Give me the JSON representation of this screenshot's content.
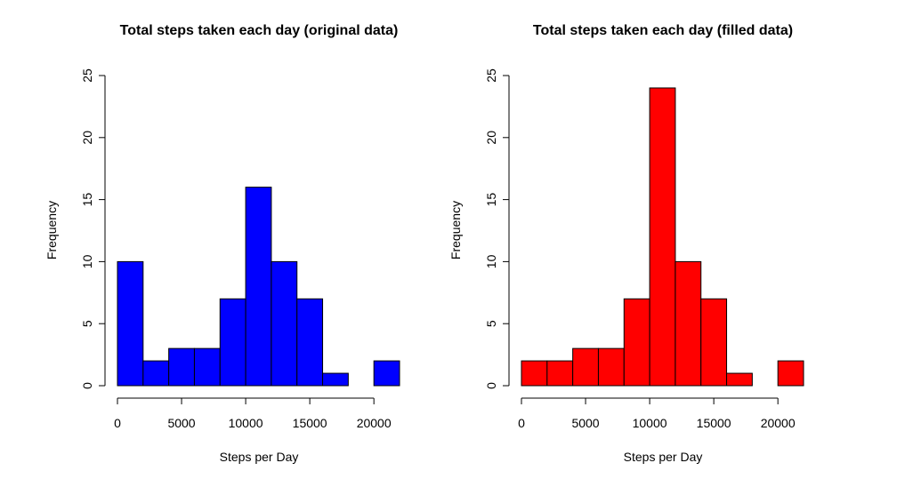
{
  "chart_data": [
    {
      "type": "bar",
      "title": "Total steps taken each day (original data)",
      "xlabel": "Steps per Day",
      "ylabel": "Frequency",
      "bin_edges": [
        0,
        2000,
        4000,
        6000,
        8000,
        10000,
        12000,
        14000,
        16000,
        18000,
        20000,
        22000
      ],
      "values": [
        10,
        2,
        3,
        3,
        7,
        16,
        10,
        7,
        1,
        0,
        2
      ],
      "xlim": [
        0,
        22000
      ],
      "ylim": [
        0,
        25
      ],
      "x_ticks": [
        0,
        5000,
        10000,
        15000,
        20000
      ],
      "y_ticks": [
        0,
        5,
        10,
        15,
        20,
        25
      ],
      "bar_color": "#0000ff",
      "grid": false,
      "legend": "none"
    },
    {
      "type": "bar",
      "title": "Total steps taken each day (filled data)",
      "xlabel": "Steps per Day",
      "ylabel": "Frequency",
      "bin_edges": [
        0,
        2000,
        4000,
        6000,
        8000,
        10000,
        12000,
        14000,
        16000,
        18000,
        20000,
        22000
      ],
      "values": [
        2,
        2,
        3,
        3,
        7,
        24,
        10,
        7,
        1,
        0,
        2
      ],
      "xlim": [
        0,
        22000
      ],
      "ylim": [
        0,
        25
      ],
      "x_ticks": [
        0,
        5000,
        10000,
        15000,
        20000
      ],
      "y_ticks": [
        0,
        5,
        10,
        15,
        20,
        25
      ],
      "bar_color": "#ff0000",
      "grid": false,
      "legend": "none"
    }
  ]
}
